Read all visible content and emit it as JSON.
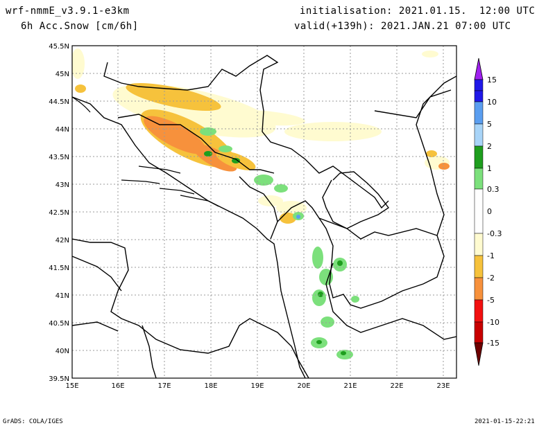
{
  "header": {
    "model": "wrf-nmmE_v3.9.1-e3km",
    "field": "6h Acc.Snow [cm/6h]",
    "init": "initialisation: 2021.01.15.  12:00 UTC",
    "valid": "valid(+139h): 2021.JAN.21 07:00 UTC"
  },
  "footer": {
    "left": "GrADS: COLA/IGES",
    "right": "2021-01-15-22:21"
  },
  "map": {
    "lat_labels": [
      "45.5N",
      "45N",
      "44.5N",
      "44N",
      "43.5N",
      "43N",
      "42.5N",
      "42N",
      "41.5N",
      "41N",
      "40.5N",
      "40N",
      "39.5N"
    ],
    "lon_labels": [
      "15E",
      "16E",
      "17E",
      "18E",
      "19E",
      "20E",
      "21E",
      "22E",
      "23E"
    ]
  },
  "legend": {
    "levels": [
      "15",
      "10",
      "5",
      "2",
      "1",
      "0.3",
      "0",
      "-0.3",
      "-1",
      "-2",
      "-5",
      "-10",
      "-15"
    ],
    "colors": [
      "#2018e8",
      "#5a9ef0",
      "#a8d4f8",
      "#1e9e1e",
      "#7ce07c",
      "#ffffff",
      "#ffffff",
      "#fffbd0",
      "#f6c23c",
      "#f7913c",
      "#f21010",
      "#c80000",
      "#8c0000"
    ],
    "top_color": "#a020f0",
    "bottom_color": "#6e0000"
  }
}
